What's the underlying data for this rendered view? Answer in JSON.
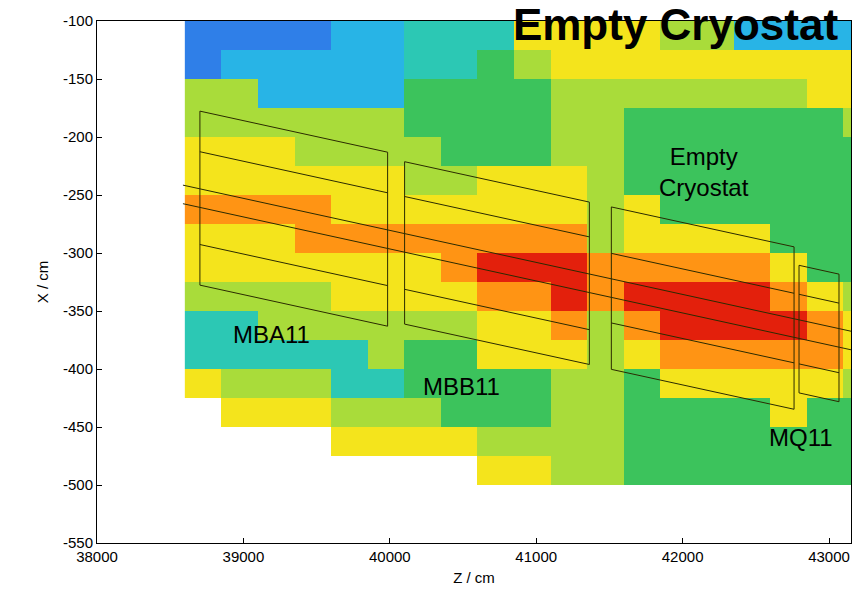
{
  "chart_data": {
    "type": "heatmap",
    "title": "Empty Cryostat",
    "x_label": "Z / cm",
    "y_label": "X / cm",
    "xlim": [
      38000,
      43150
    ],
    "ylim": [
      -550,
      -100
    ],
    "xticks": [
      38000,
      39000,
      40000,
      41000,
      42000,
      43000
    ],
    "yticks": [
      -550,
      -500,
      -450,
      -400,
      -350,
      -300,
      -250,
      -200,
      -150,
      -100
    ],
    "grid": false,
    "x": [
      38725,
      38975,
      39225,
      39475,
      39725,
      39975,
      40225,
      40475,
      40725,
      40975,
      41225,
      41475,
      41725,
      41975,
      42225,
      42475,
      42725,
      42975,
      43225
    ],
    "y": [
      -487.5,
      -462.5,
      -437.5,
      -412.5,
      -387.5,
      -362.5,
      -337.5,
      -312.5,
      -287.5,
      -262.5,
      -237.5,
      -212.5,
      -187.5,
      -162.5,
      -137.5,
      -112.5
    ],
    "values": [
      [
        null,
        null,
        null,
        null,
        null,
        null,
        null,
        null,
        7,
        7,
        6,
        6,
        5,
        5,
        5,
        5,
        5,
        5,
        5
      ],
      [
        null,
        null,
        null,
        null,
        7,
        7,
        7,
        7,
        6,
        6,
        6,
        6,
        5,
        5,
        5,
        5,
        5,
        5,
        5
      ],
      [
        null,
        7,
        7,
        7,
        6,
        6,
        6,
        5,
        5,
        5,
        6,
        6,
        5,
        5,
        5,
        5,
        7,
        5,
        5
      ],
      [
        7,
        6,
        6,
        6,
        4,
        4,
        5,
        5,
        5,
        5,
        6,
        6,
        5,
        7,
        7,
        7,
        7,
        7,
        6
      ],
      [
        4,
        4,
        4,
        4,
        4,
        6,
        5,
        5,
        7,
        7,
        7,
        6,
        7,
        8,
        8,
        8,
        8,
        8,
        7
      ],
      [
        4,
        4,
        6,
        6,
        6,
        6,
        6,
        6,
        7,
        7,
        8,
        6,
        8,
        9,
        9,
        9,
        9,
        8,
        7
      ],
      [
        6,
        6,
        6,
        6,
        7,
        7,
        7,
        7,
        8,
        8,
        9,
        8,
        9,
        9,
        9,
        9,
        8,
        7,
        6
      ],
      [
        7,
        7,
        7,
        7,
        7,
        7,
        7,
        8,
        9,
        9,
        9,
        8,
        8,
        8,
        8,
        8,
        7,
        5,
        5
      ],
      [
        7,
        7,
        7,
        8,
        8,
        8,
        8,
        8,
        8,
        8,
        8,
        6,
        7,
        7,
        7,
        7,
        5,
        5,
        5
      ],
      [
        8,
        8,
        8,
        8,
        7,
        7,
        7,
        7,
        7,
        7,
        7,
        6,
        7,
        5,
        5,
        5,
        5,
        5,
        5
      ],
      [
        7,
        7,
        7,
        7,
        7,
        7,
        6,
        6,
        7,
        7,
        7,
        6,
        5,
        5,
        5,
        5,
        5,
        5,
        5
      ],
      [
        7,
        7,
        7,
        6,
        6,
        6,
        6,
        5,
        5,
        5,
        6,
        6,
        5,
        5,
        5,
        5,
        5,
        5,
        5
      ],
      [
        6,
        6,
        6,
        6,
        6,
        6,
        5,
        5,
        5,
        5,
        6,
        6,
        5,
        5,
        5,
        5,
        5,
        5,
        6
      ],
      [
        6,
        6,
        3,
        3,
        3,
        3,
        5,
        5,
        5,
        5,
        6,
        6,
        6,
        6,
        6,
        6,
        6,
        7,
        7
      ],
      [
        2,
        3,
        3,
        3,
        3,
        3,
        4,
        4,
        5,
        6,
        7,
        7,
        7,
        7,
        7,
        7,
        7,
        7,
        7
      ],
      [
        2,
        2,
        2,
        2,
        3,
        3,
        4,
        4,
        4,
        7,
        7,
        7,
        7,
        6,
        6,
        3,
        3,
        3,
        3
      ]
    ],
    "outlines": [
      {
        "x": [
          38703,
          39985,
          39985,
          38703,
          38703
        ],
        "y": [
          -177.7,
          -213.1,
          -363.1,
          -327.7,
          -177.7
        ]
      },
      {
        "x": [
          38703,
          39985
        ],
        "y": [
          -212.7,
          -248.1
        ]
      },
      {
        "x": [
          38703,
          39985
        ],
        "y": [
          -292.7,
          -328.1
        ]
      },
      {
        "x": [
          40101,
          41363,
          41363,
          40101,
          40101
        ],
        "y": [
          -221.3,
          -256.1,
          -396.1,
          -361.3,
          -221.3
        ]
      },
      {
        "x": [
          40101,
          41363
        ],
        "y": [
          -251.3,
          -286.1
        ]
      },
      {
        "x": [
          40101,
          41363
        ],
        "y": [
          -331.3,
          -366.1
        ]
      },
      {
        "x": [
          41513,
          42761,
          42761,
          41513,
          41513
        ],
        "y": [
          -260.3,
          -294.7,
          -434.7,
          -400.3,
          -260.3
        ]
      },
      {
        "x": [
          41513,
          42761
        ],
        "y": [
          -300.3,
          -334.7
        ]
      },
      {
        "x": [
          41513,
          42761
        ],
        "y": [
          -360.3,
          -394.7
        ]
      },
      {
        "x": [
          42795,
          43068,
          43068,
          42795,
          42795
        ],
        "y": [
          -310.6,
          -318.2,
          -428.2,
          -420.6,
          -310.6
        ]
      },
      {
        "x": [
          42795,
          43068
        ],
        "y": [
          -335.6,
          -343.2
        ]
      },
      {
        "x": [
          42795,
          43068
        ],
        "y": [
          -395.6,
          -403.2
        ]
      },
      {
        "x": [
          38587,
          43250
        ],
        "y": [
          -241.5,
          -370.2
        ]
      },
      {
        "x": [
          38587,
          43250
        ],
        "y": [
          -257.5,
          -386.2
        ]
      }
    ],
    "annotations": [
      {
        "text": "MBA11",
        "x": 39194,
        "y": -370
      },
      {
        "text": "MBB11",
        "x": 40490,
        "y": -415
      },
      {
        "text": "Empty\nCryostat",
        "x": 42147,
        "y": -230
      },
      {
        "text": "MQ11",
        "x": 42810,
        "y": -458.7
      }
    ]
  }
}
